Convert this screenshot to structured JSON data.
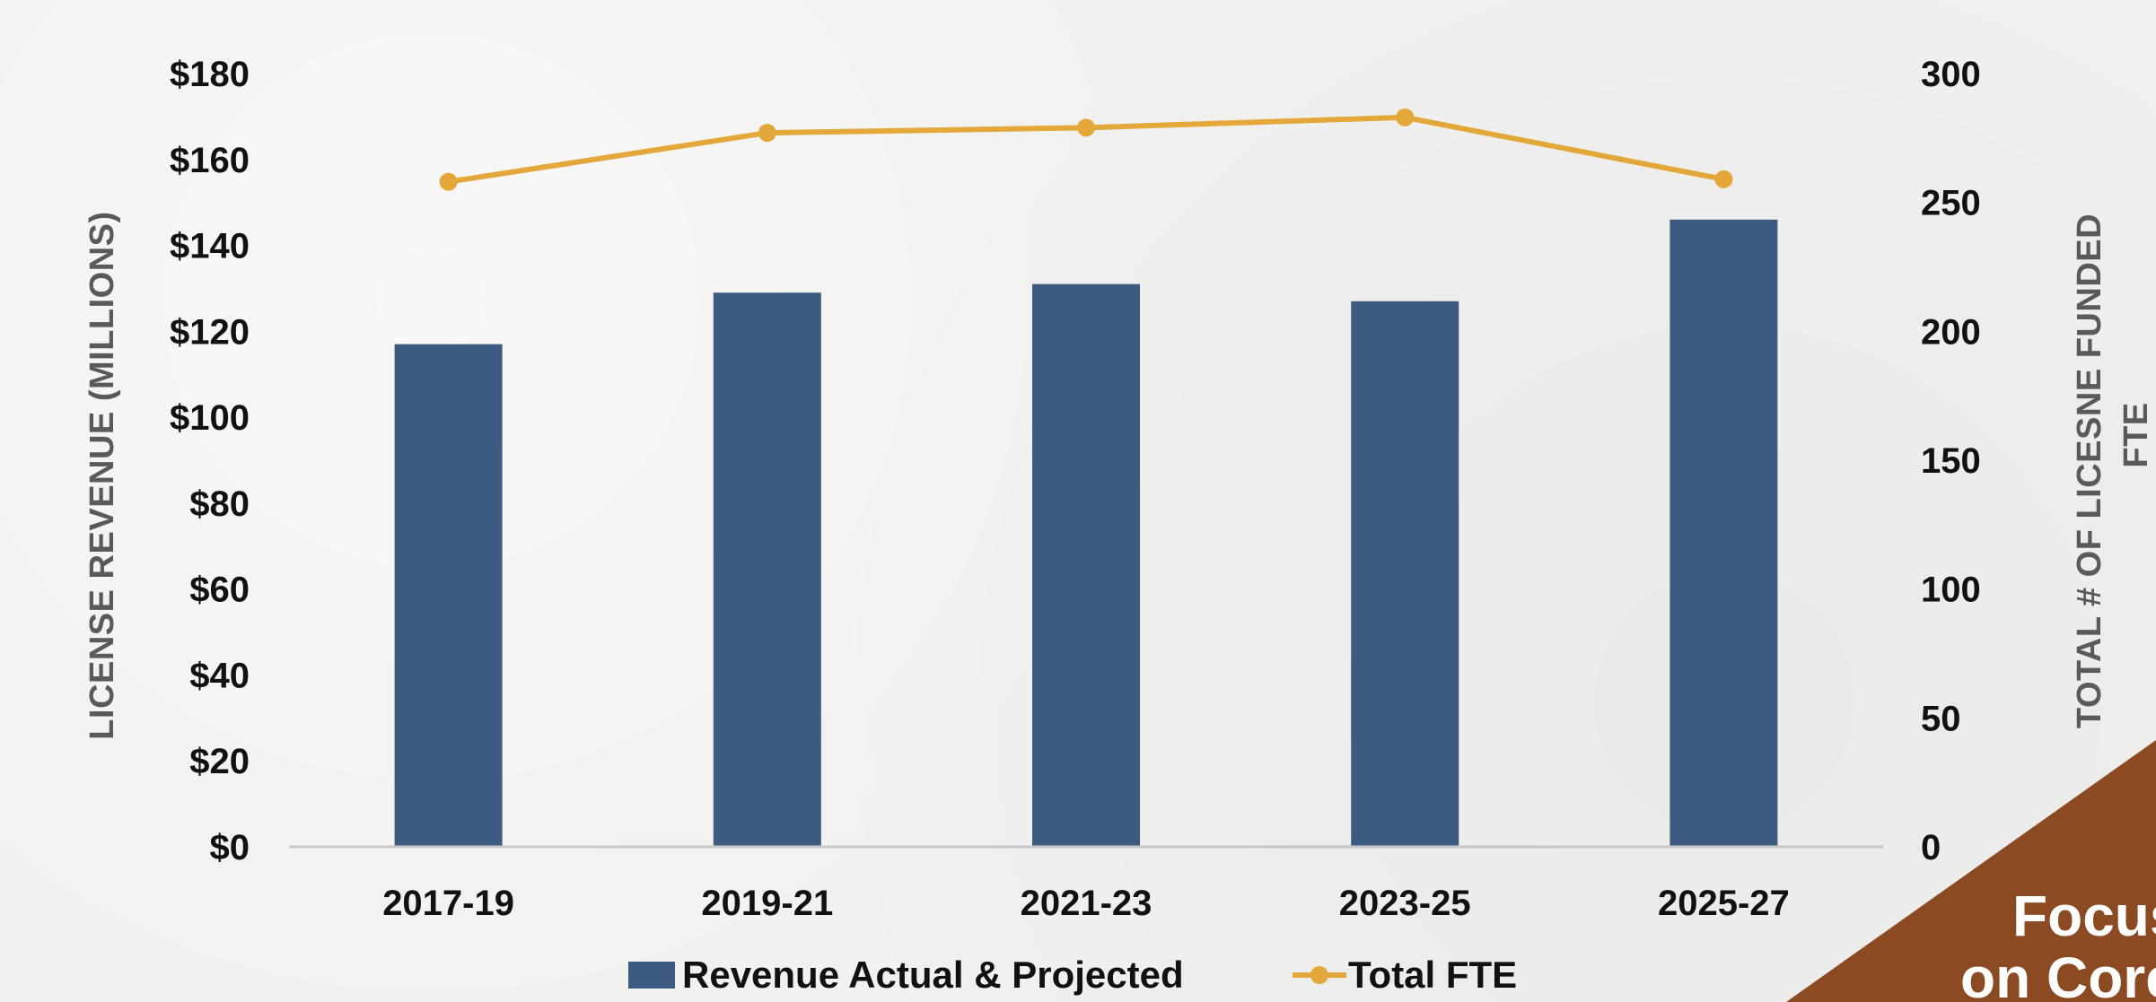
{
  "chart_data": {
    "type": "bar",
    "categories": [
      "2017-19",
      "2019-21",
      "2021-23",
      "2023-25",
      "2025-27"
    ],
    "series": [
      {
        "name": "Revenue Actual & Projected",
        "type": "bar",
        "axis": "left",
        "values": [
          117,
          129,
          131,
          127,
          146
        ],
        "color": "#3d5a80"
      },
      {
        "name": "Total FTE",
        "type": "line",
        "axis": "right",
        "values": [
          258,
          277,
          279,
          283,
          259
        ],
        "color": "#e4a83a"
      }
    ],
    "y_left": {
      "label": "LICENSE REVENUE (MILLIONS)",
      "range": [
        0,
        180
      ],
      "ticks": [
        0,
        20,
        40,
        60,
        80,
        100,
        120,
        140,
        160,
        180
      ],
      "tick_labels": [
        "$0",
        "$20",
        "$40",
        "$60",
        "$80",
        "$100",
        "$120",
        "$140",
        "$160",
        "$180"
      ]
    },
    "y_right": {
      "label_line1": "TOTAL # OF LICESNE FUNDED",
      "label_line2": "FTE",
      "range": [
        0,
        300
      ],
      "ticks": [
        0,
        50,
        100,
        150,
        200,
        250,
        300
      ],
      "tick_labels": [
        "0",
        "50",
        "100",
        "150",
        "200",
        "250",
        "300"
      ]
    },
    "grid": false,
    "legend": "bottom"
  },
  "corner_banner": {
    "line1": "Focus",
    "line2": "on Core",
    "color": "#8c4a22"
  }
}
